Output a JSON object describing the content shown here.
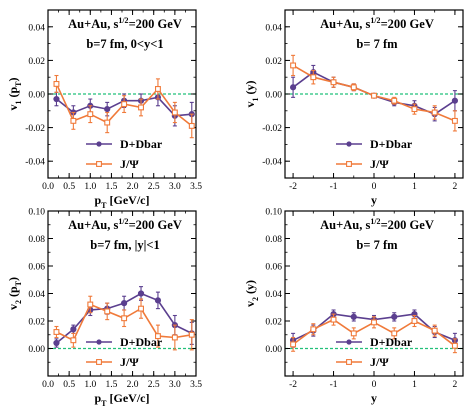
{
  "colors": {
    "dd": "#5b3f8f",
    "jpsi": "#f07a3a",
    "zero_line": "#22c07a",
    "frame": "#000000"
  },
  "legend": {
    "dd": "D+Dbar",
    "jpsi": "J/Ψ"
  },
  "chart_data": [
    {
      "type": "line",
      "ylabel": "v1 (pT)",
      "xlabel": "pT [GeV/c]",
      "annotations": [
        "Au+Au, s1/2=200 GeV",
        "b=7 fm,  0<y<1"
      ],
      "xlim": [
        0,
        3.5
      ],
      "ylim": [
        -0.05,
        0.05
      ],
      "xticks": [
        0.0,
        0.5,
        1.0,
        1.5,
        2.0,
        2.5,
        3.0,
        3.5
      ],
      "xtick_labels": [
        "0.0",
        "0.5",
        "1.0",
        "1.5",
        "2.0",
        "2.5",
        "3.0",
        "3.5"
      ],
      "yticks": [
        -0.04,
        -0.02,
        0.0,
        0.02,
        0.04
      ],
      "ytick_labels": [
        "-0.04",
        "-0.02",
        "0.00",
        "0.02",
        "0.04"
      ],
      "legend_position": "bottom-center",
      "series": [
        {
          "name": "D+Dbar",
          "x": [
            0.2,
            0.6,
            1.0,
            1.4,
            1.8,
            2.2,
            2.6,
            3.0,
            3.4
          ],
          "y": [
            -0.003,
            -0.011,
            -0.007,
            -0.009,
            -0.004,
            -0.004,
            -0.002,
            -0.013,
            -0.012
          ],
          "err": [
            0.004,
            0.004,
            0.004,
            0.004,
            0.004,
            0.004,
            0.005,
            0.006,
            0.007
          ]
        },
        {
          "name": "J/Ψ",
          "x": [
            0.2,
            0.6,
            1.0,
            1.4,
            1.8,
            2.2,
            2.6,
            3.0,
            3.4
          ],
          "y": [
            0.006,
            -0.016,
            -0.012,
            -0.017,
            -0.006,
            -0.008,
            0.003,
            -0.011,
            -0.019
          ],
          "err": [
            0.005,
            0.005,
            0.005,
            0.006,
            0.005,
            0.005,
            0.006,
            0.006,
            0.007
          ]
        }
      ]
    },
    {
      "type": "line",
      "ylabel": "v1 (y)",
      "xlabel": "y",
      "annotations": [
        "Au+Au, s1/2=200 GeV",
        "b= 7 fm"
      ],
      "xlim": [
        -2.2,
        2.2
      ],
      "ylim": [
        -0.05,
        0.05
      ],
      "xticks": [
        -2,
        -1,
        0,
        1,
        2
      ],
      "xtick_labels": [
        "-2",
        "-1",
        "0",
        "1",
        "2"
      ],
      "yticks": [
        -0.04,
        -0.02,
        0.0,
        0.02,
        0.04
      ],
      "ytick_labels": [
        "-0.04",
        "-0.02",
        "0.00",
        "0.02",
        "0.04"
      ],
      "legend_position": "bottom-center",
      "series": [
        {
          "name": "D+Dbar",
          "x": [
            -2.0,
            -1.5,
            -1.0,
            -0.5,
            0.0,
            0.5,
            1.0,
            1.5,
            2.0
          ],
          "y": [
            0.004,
            0.013,
            0.007,
            0.004,
            -0.001,
            -0.005,
            -0.007,
            -0.012,
            -0.004
          ],
          "err": [
            0.006,
            0.004,
            0.003,
            0.002,
            0.001,
            0.002,
            0.003,
            0.004,
            0.006
          ]
        },
        {
          "name": "J/Ψ",
          "x": [
            -2.0,
            -1.5,
            -1.0,
            -0.5,
            0.0,
            0.5,
            1.0,
            1.5,
            2.0
          ],
          "y": [
            0.017,
            0.01,
            0.007,
            0.004,
            -0.001,
            -0.004,
            -0.009,
            -0.011,
            -0.016
          ],
          "err": [
            0.006,
            0.004,
            0.003,
            0.002,
            0.001,
            0.002,
            0.003,
            0.004,
            0.006
          ]
        }
      ]
    },
    {
      "type": "line",
      "ylabel": "v2 (pT)",
      "xlabel": "pT [GeV/c]",
      "annotations": [
        "Au+Au, s1/2=200 GeV",
        "b=7 fm, |y|<1"
      ],
      "xlim": [
        0,
        3.5
      ],
      "ylim": [
        -0.02,
        0.1
      ],
      "xticks": [
        0.0,
        0.5,
        1.0,
        1.5,
        2.0,
        2.5,
        3.0,
        3.5
      ],
      "xtick_labels": [
        "0.0",
        "0.5",
        "1.0",
        "1.5",
        "2.0",
        "2.5",
        "3.0",
        "3.5"
      ],
      "yticks": [
        0.0,
        0.02,
        0.04,
        0.06,
        0.08,
        0.1
      ],
      "ytick_labels": [
        "0.00",
        "0.02",
        "0.04",
        "0.06",
        "0.08",
        "0.10"
      ],
      "legend_position": "bottom-center",
      "series": [
        {
          "name": "D+Dbar",
          "x": [
            0.2,
            0.6,
            1.0,
            1.4,
            1.8,
            2.2,
            2.6,
            3.0,
            3.4
          ],
          "y": [
            0.004,
            0.014,
            0.028,
            0.029,
            0.033,
            0.04,
            0.035,
            0.017,
            0.011
          ],
          "err": [
            0.003,
            0.003,
            0.004,
            0.004,
            0.005,
            0.005,
            0.006,
            0.007,
            0.008
          ]
        },
        {
          "name": "J/Ψ",
          "x": [
            0.2,
            0.6,
            1.0,
            1.4,
            1.8,
            2.2,
            2.6,
            3.0,
            3.4
          ],
          "y": [
            0.012,
            0.006,
            0.032,
            0.027,
            0.022,
            0.029,
            0.009,
            0.008,
            0.01
          ],
          "err": [
            0.004,
            0.005,
            0.006,
            0.006,
            0.006,
            0.007,
            0.008,
            0.009,
            0.011
          ]
        }
      ]
    },
    {
      "type": "line",
      "ylabel": "v2 (y)",
      "xlabel": "y",
      "annotations": [
        "Au+Au, s1/2=200 GeV",
        "b= 7 fm"
      ],
      "xlim": [
        -2.2,
        2.2
      ],
      "ylim": [
        -0.02,
        0.1
      ],
      "xticks": [
        -2,
        -1,
        0,
        1,
        2
      ],
      "xtick_labels": [
        "-2",
        "-1",
        "0",
        "1",
        "2"
      ],
      "yticks": [
        0.0,
        0.02,
        0.04,
        0.06,
        0.08,
        0.1
      ],
      "ytick_labels": [
        "0.00",
        "0.02",
        "0.04",
        "0.06",
        "0.08",
        "0.10"
      ],
      "legend_position": "bottom-center",
      "series": [
        {
          "name": "D+Dbar",
          "x": [
            -2.0,
            -1.5,
            -1.0,
            -0.5,
            0.0,
            0.5,
            1.0,
            1.5,
            2.0
          ],
          "y": [
            0.006,
            0.013,
            0.025,
            0.023,
            0.021,
            0.023,
            0.025,
            0.012,
            0.006
          ],
          "err": [
            0.005,
            0.004,
            0.003,
            0.003,
            0.003,
            0.003,
            0.003,
            0.004,
            0.005
          ]
        },
        {
          "name": "J/Ψ",
          "x": [
            -2.0,
            -1.5,
            -1.0,
            -0.5,
            0.0,
            0.5,
            1.0,
            1.5,
            2.0
          ],
          "y": [
            0.003,
            0.014,
            0.021,
            0.011,
            0.019,
            0.011,
            0.02,
            0.013,
            0.002
          ],
          "err": [
            0.005,
            0.004,
            0.004,
            0.004,
            0.004,
            0.004,
            0.004,
            0.004,
            0.005
          ]
        }
      ]
    }
  ]
}
